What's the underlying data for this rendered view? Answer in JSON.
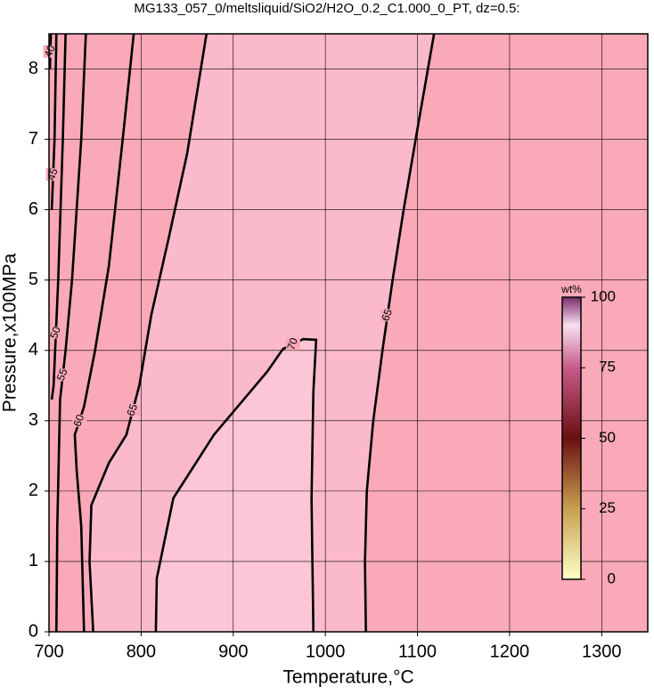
{
  "chart_data": {
    "type": "contour",
    "title": "MG133_057_0/meltsliquid/SiO2/H2O_0.2_C1.000_0_PT, dz=0.5:",
    "x_label": "Temperature,°C",
    "y_label": "Pressure,x100MPa",
    "xlim": [
      700,
      1350
    ],
    "ylim": [
      0,
      8.5
    ],
    "xticks": [
      700,
      800,
      900,
      1000,
      1100,
      1200,
      1300
    ],
    "yticks": [
      0,
      1,
      2,
      3,
      4,
      5,
      6,
      7,
      8
    ],
    "grid": true,
    "background_color": "#f9a9b8",
    "contours": [
      {
        "level": 40,
        "x": [
          702,
          701
        ],
        "y": [
          8.5,
          8
        ]
      },
      {
        "level": 45,
        "x": [
          708,
          706,
          703
        ],
        "y": [
          8.5,
          7,
          6
        ]
      },
      {
        "level": 50,
        "x": [
          718,
          715,
          710,
          705,
          703
        ],
        "y": [
          8.5,
          7,
          5,
          3.5,
          3.3
        ]
      },
      {
        "level": 55,
        "x": [
          740,
          735,
          725,
          718,
          712,
          709,
          708
        ],
        "y": [
          8.5,
          7,
          5,
          4,
          3.3,
          1.5,
          0
        ]
      },
      {
        "level": 60,
        "x": [
          792,
          780,
          765,
          750,
          738,
          728,
          730,
          735,
          738
        ],
        "y": [
          8.5,
          7,
          5.2,
          4,
          3.2,
          2.8,
          2.3,
          1.5,
          0
        ]
      },
      {
        "level": 65,
        "x": [
          748,
          744,
          746,
          765,
          784,
          798,
          811,
          830,
          850,
          871
        ],
        "y": [
          0,
          1,
          1.8,
          2.4,
          2.8,
          3.5,
          4.5,
          5.6,
          6.8,
          8.5
        ],
        "color": "#fbbacb"
      },
      {
        "level": 65,
        "x": [
          1044,
          1043,
          1045,
          1052,
          1062,
          1073,
          1085,
          1098,
          1118
        ],
        "y": [
          0,
          1,
          2,
          3,
          4,
          5,
          6,
          7,
          8.5
        ]
      },
      {
        "level": 70,
        "x": [
          816,
          817,
          835,
          879,
          937,
          954,
          976,
          990,
          987,
          985,
          987
        ],
        "y": [
          0,
          0.76,
          1.9,
          2.8,
          3.7,
          4.02,
          4.16,
          4.15,
          3.42,
          1.9,
          0
        ],
        "color": "#fcc6d6"
      }
    ],
    "colorbar": {
      "label": "wt%",
      "lim": [
        0,
        100
      ],
      "ticks": [
        0,
        25,
        50,
        75,
        100
      ]
    }
  }
}
